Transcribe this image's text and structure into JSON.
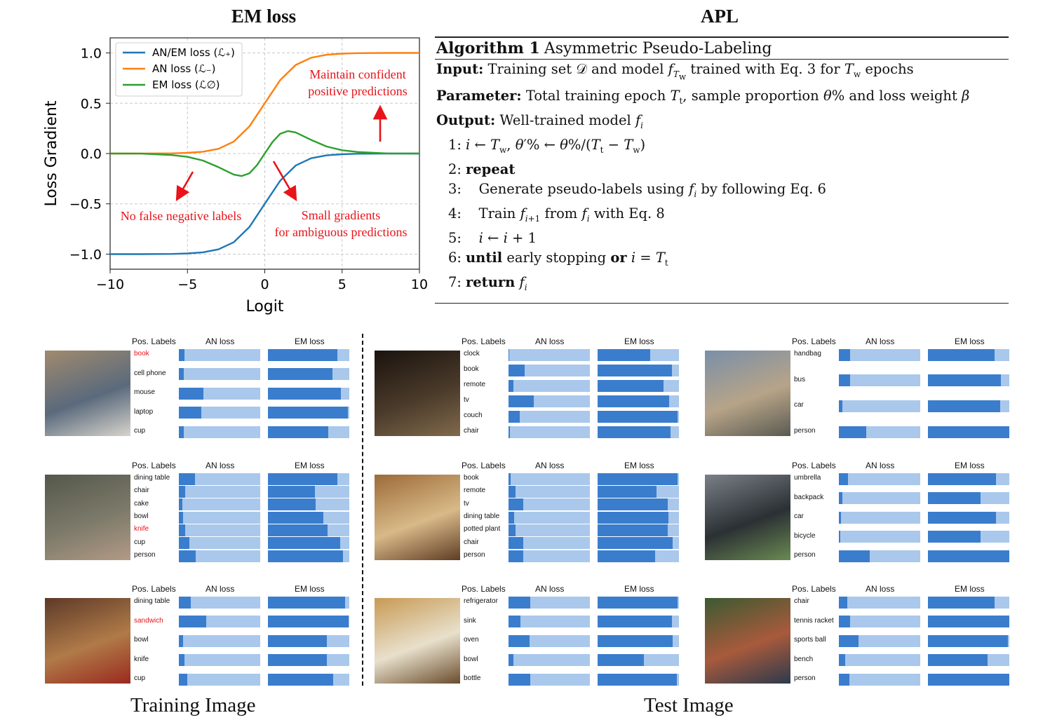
{
  "titles": {
    "left": "EM loss",
    "right": "APL"
  },
  "chart_data": {
    "type": "line",
    "xlabel": "Logit",
    "ylabel": "Loss Gradient",
    "xlim": [
      -10,
      10
    ],
    "ylim": [
      -1.0,
      1.0
    ],
    "xticks": [
      "−10",
      "−5",
      "0",
      "5",
      "10"
    ],
    "yticks": [
      "−1.0",
      "−0.5",
      "0.0",
      "0.5",
      "1.0"
    ],
    "xtick_values": [
      -10,
      -5,
      0,
      5,
      10
    ],
    "ytick_values": [
      -1.0,
      -0.5,
      0.0,
      0.5,
      1.0
    ],
    "grid": true,
    "legend": "top-left",
    "series": [
      {
        "name": "AN/EM loss (ℒ₊)",
        "color": "#1f77b4",
        "x": [
          -10,
          -8,
          -6,
          -5,
          -4,
          -3,
          -2,
          -1,
          0,
          1,
          2,
          3,
          4,
          5,
          6,
          8,
          10
        ],
        "y": [
          -1.0,
          -1.0,
          -0.998,
          -0.993,
          -0.982,
          -0.953,
          -0.881,
          -0.731,
          -0.5,
          -0.269,
          -0.119,
          -0.047,
          -0.018,
          -0.007,
          -0.002,
          -0.0,
          0.0
        ]
      },
      {
        "name": "AN loss (ℒ₋)",
        "color": "#ff7f0e",
        "x": [
          -10,
          -8,
          -6,
          -5,
          -4,
          -3,
          -2,
          -1,
          0,
          1,
          2,
          3,
          4,
          5,
          6,
          8,
          10
        ],
        "y": [
          0.0,
          0.0,
          0.002,
          0.007,
          0.018,
          0.047,
          0.119,
          0.269,
          0.5,
          0.731,
          0.881,
          0.953,
          0.982,
          0.993,
          0.998,
          1.0,
          1.0
        ]
      },
      {
        "name": "EM loss (ℒ∅)",
        "color": "#2ca02c",
        "x": [
          -10,
          -8,
          -6,
          -5,
          -4,
          -3,
          -2,
          -1.5,
          -1,
          -0.5,
          0,
          0.5,
          1,
          1.5,
          2,
          3,
          4,
          5,
          6,
          8,
          10
        ],
        "y": [
          0.0,
          -0.001,
          -0.015,
          -0.033,
          -0.07,
          -0.135,
          -0.21,
          -0.224,
          -0.197,
          -0.114,
          0.0,
          0.114,
          0.197,
          0.224,
          0.21,
          0.135,
          0.07,
          0.033,
          0.015,
          0.001,
          0.0
        ]
      }
    ],
    "annotations": [
      {
        "text1": "Maintain confident",
        "text2": "positive predictions"
      },
      {
        "text1": "No false negative labels"
      },
      {
        "text1": "Small gradients",
        "text2": "for ambiguous predictions"
      }
    ]
  },
  "algorithm": {
    "title_num": "Algorithm 1",
    "title": "Asymmetric Pseudo-Labeling",
    "input_label": "Input",
    "param_label": "Parameter",
    "output_label": "Output",
    "steps": [
      "1:",
      "2:",
      "3:",
      "4:",
      "5:",
      "6:",
      "7:"
    ],
    "kw_repeat": "repeat",
    "kw_until": "until",
    "kw_or": "or",
    "kw_return": "return",
    "step3_text": "Generate pseudo-labels using",
    "step3_tail": "by following Eq. 6",
    "step4_a": "Train",
    "step4_b": "from",
    "step4_c": "with Eq. 8",
    "step6_text": "early stopping"
  },
  "panels": {
    "header_pos": "Pos. Labels",
    "header_an": "AN loss",
    "header_em": "EM loss",
    "items": [
      {
        "image": "desk-laptops",
        "colors": [
          "#a08a6e",
          "#5a6a7c",
          "#d8d4cc"
        ],
        "rows": [
          {
            "label": "book",
            "an": 0.07,
            "em": 0.85,
            "red": true
          },
          {
            "label": "cell phone",
            "an": 0.06,
            "em": 0.79
          },
          {
            "label": "mouse",
            "an": 0.3,
            "em": 0.9
          },
          {
            "label": "laptop",
            "an": 0.28,
            "em": 0.98
          },
          {
            "label": "cup",
            "an": 0.06,
            "em": 0.74
          }
        ]
      },
      {
        "image": "dark-room",
        "colors": [
          "#1a130e",
          "#4a3a2a",
          "#806a4c"
        ],
        "rows": [
          {
            "label": "clock",
            "an": 0.01,
            "em": 0.65
          },
          {
            "label": "book",
            "an": 0.2,
            "em": 0.91
          },
          {
            "label": "remote",
            "an": 0.06,
            "em": 0.81
          },
          {
            "label": "tv",
            "an": 0.31,
            "em": 0.88
          },
          {
            "label": "couch",
            "an": 0.14,
            "em": 0.98
          },
          {
            "label": "chair",
            "an": 0.02,
            "em": 0.9
          }
        ]
      },
      {
        "image": "street-bus",
        "colors": [
          "#7a8fa8",
          "#b7a488",
          "#5a5a52"
        ],
        "rows": [
          {
            "label": "handbag",
            "an": 0.14,
            "em": 0.82
          },
          {
            "label": "bus",
            "an": 0.14,
            "em": 0.9
          },
          {
            "label": "car",
            "an": 0.04,
            "em": 0.89
          },
          {
            "label": "person",
            "an": 0.34,
            "em": 1.0
          }
        ]
      },
      {
        "image": "soldiers-cake",
        "colors": [
          "#53584a",
          "#7d7a6a",
          "#b39a86"
        ],
        "rows": [
          {
            "label": "dining table",
            "an": 0.2,
            "em": 0.85
          },
          {
            "label": "chair",
            "an": 0.08,
            "em": 0.58
          },
          {
            "label": "cake",
            "an": 0.04,
            "em": 0.59
          },
          {
            "label": "bowl",
            "an": 0.05,
            "em": 0.68
          },
          {
            "label": "knife",
            "an": 0.08,
            "em": 0.73,
            "red": true
          },
          {
            "label": "cup",
            "an": 0.13,
            "em": 0.89
          },
          {
            "label": "person",
            "an": 0.21,
            "em": 0.92
          }
        ]
      },
      {
        "image": "kitchen-woman",
        "colors": [
          "#9c6b38",
          "#d8b988",
          "#5e3c24"
        ],
        "rows": [
          {
            "label": "book",
            "an": 0.03,
            "em": 0.98
          },
          {
            "label": "remote",
            "an": 0.09,
            "em": 0.72
          },
          {
            "label": "tv",
            "an": 0.18,
            "em": 0.86
          },
          {
            "label": "dining table",
            "an": 0.07,
            "em": 0.87
          },
          {
            "label": "potted plant",
            "an": 0.09,
            "em": 0.86
          },
          {
            "label": "chair",
            "an": 0.18,
            "em": 0.92
          },
          {
            "label": "person",
            "an": 0.18,
            "em": 0.71
          }
        ]
      },
      {
        "image": "race-car",
        "colors": [
          "#7b8088",
          "#2b3034",
          "#6a8a52"
        ],
        "rows": [
          {
            "label": "umbrella",
            "an": 0.11,
            "em": 0.84
          },
          {
            "label": "backpack",
            "an": 0.04,
            "em": 0.65
          },
          {
            "label": "car",
            "an": 0.03,
            "em": 0.84
          },
          {
            "label": "bicycle",
            "an": 0.02,
            "em": 0.65
          },
          {
            "label": "person",
            "an": 0.38,
            "em": 1.0
          }
        ]
      },
      {
        "image": "sandwich-plate",
        "colors": [
          "#5c3a28",
          "#b07a48",
          "#9a2a1e"
        ],
        "rows": [
          {
            "label": "dining table",
            "an": 0.15,
            "em": 0.95
          },
          {
            "label": "sandwich",
            "an": 0.34,
            "em": 0.99,
            "red": true
          },
          {
            "label": "bowl",
            "an": 0.05,
            "em": 0.72
          },
          {
            "label": "knife",
            "an": 0.07,
            "em": 0.72
          },
          {
            "label": "cup",
            "an": 0.1,
            "em": 0.8
          }
        ]
      },
      {
        "image": "kitchen-white",
        "colors": [
          "#c89a54",
          "#e8e0cc",
          "#6a4c2c"
        ],
        "rows": [
          {
            "label": "refrigerator",
            "an": 0.27,
            "em": 0.98
          },
          {
            "label": "sink",
            "an": 0.15,
            "em": 0.91
          },
          {
            "label": "oven",
            "an": 0.26,
            "em": 0.92
          },
          {
            "label": "bowl",
            "an": 0.06,
            "em": 0.57
          },
          {
            "label": "bottle",
            "an": 0.27,
            "em": 0.97
          }
        ]
      },
      {
        "image": "tennis-court",
        "colors": [
          "#3c5a32",
          "#a85a3c",
          "#2c3a4c"
        ],
        "rows": [
          {
            "label": "chair",
            "an": 0.1,
            "em": 0.82
          },
          {
            "label": "tennis racket",
            "an": 0.14,
            "em": 1.0
          },
          {
            "label": "sports ball",
            "an": 0.24,
            "em": 0.98
          },
          {
            "label": "bench",
            "an": 0.08,
            "em": 0.73
          },
          {
            "label": "person",
            "an": 0.13,
            "em": 1.0
          }
        ]
      }
    ]
  },
  "captions": {
    "training": "Training Image",
    "test": "Test Image"
  }
}
